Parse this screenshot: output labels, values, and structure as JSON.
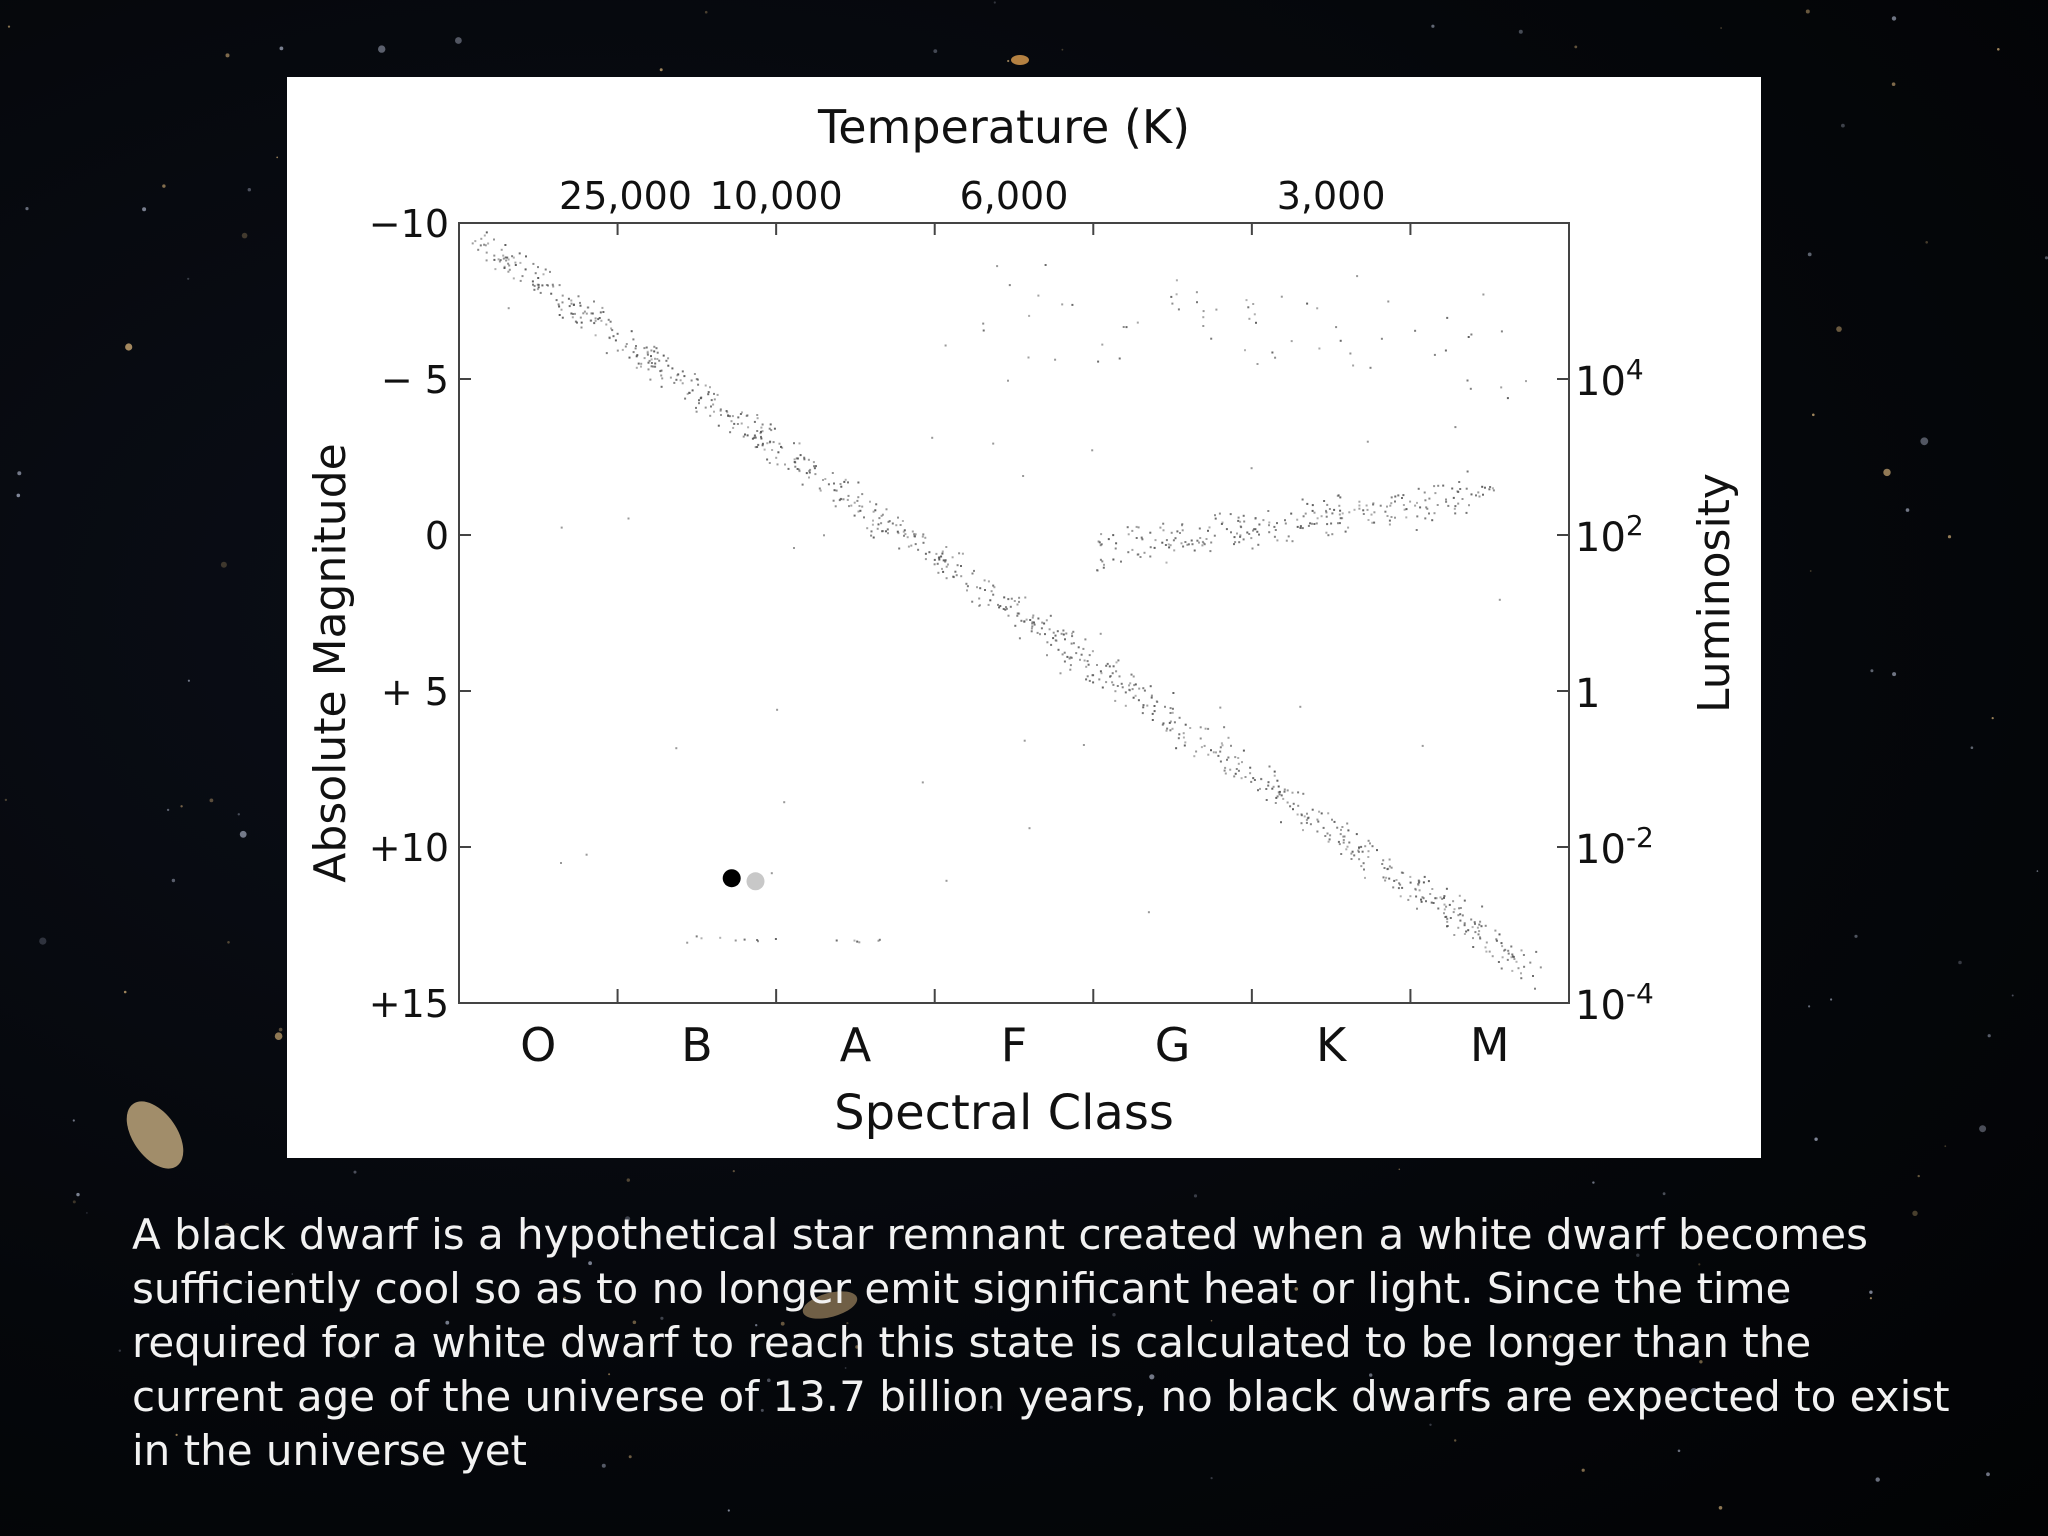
{
  "slide": {
    "caption": "A black dwarf is a hypothetical star remnant created when a white dwarf becomes sufficiently cool so as to no longer emit significant heat or light. Since the time required for a white dwarf to reach this state is calculated to be longer than the current age of the universe of 13.7 billion years, no black dwarfs are expected to exist in the universe yet"
  },
  "colors": {
    "background": "#05070b",
    "panel": "#ffffff",
    "points": "#555555",
    "black_dwarf": "#000000",
    "white_dwarf_marker": "#c8c8c8"
  },
  "chart_data": {
    "type": "scatter",
    "title": "",
    "top_axis": {
      "label": "Temperature (K)",
      "tick_labels": [
        "25,000",
        "10,000",
        "6,000",
        "3,000"
      ],
      "tick_positions_spectral": [
        0.55,
        1.5,
        3.0,
        5.0
      ]
    },
    "x_axis": {
      "label": "Spectral Class",
      "categories": [
        "O",
        "B",
        "A",
        "F",
        "G",
        "K",
        "M"
      ],
      "range": [
        -0.5,
        6.5
      ]
    },
    "y_axis_left": {
      "label": "Absolute Magnitude",
      "ticks": [
        -10,
        -5,
        0,
        5,
        10,
        15
      ],
      "tick_labels": [
        "−10",
        "− 5",
        "0",
        "+ 5",
        "+10",
        "+15"
      ],
      "range": [
        -10,
        15
      ],
      "inverted": true
    },
    "y_axis_right": {
      "label": "Luminosity",
      "tick_labels": [
        {
          "base": "10",
          "exp": "4",
          "magnitude": -5
        },
        {
          "base": "10",
          "exp": "2",
          "magnitude": 0
        },
        {
          "base": "1",
          "exp": "",
          "magnitude": 5
        },
        {
          "base": "10",
          "exp": "-2",
          "magnitude": 10
        },
        {
          "base": "10",
          "exp": "-4",
          "magnitude": 15
        }
      ]
    },
    "grid": false,
    "regions": [
      {
        "name": "main sequence",
        "x_start": -0.4,
        "x_end": 6.3,
        "mag_start": -9.5,
        "mag_end": 14.0,
        "count": 900,
        "spread": 0.9
      },
      {
        "name": "giants",
        "x_start": 3.5,
        "x_end": 6.0,
        "mag_start": 0.5,
        "mag_end": -1.3,
        "count": 260,
        "spread": 1.0
      },
      {
        "name": "supergiants",
        "x_start": 2.8,
        "x_end": 6.3,
        "mag_start": -7.5,
        "mag_end": -5.5,
        "count": 60,
        "spread": 2.5
      },
      {
        "name": "white dwarfs",
        "x_start": 1.0,
        "x_end": 2.2,
        "mag_start": 12.9,
        "mag_end": 13.0,
        "count": 14,
        "spread": 0.1
      }
    ],
    "highlighted_points": [
      {
        "name": "black dwarf",
        "x": 1.22,
        "y": 11.0,
        "color": "#000000"
      },
      {
        "name": "white dwarf",
        "x": 1.37,
        "y": 11.1,
        "color": "#c8c8c8"
      }
    ]
  }
}
